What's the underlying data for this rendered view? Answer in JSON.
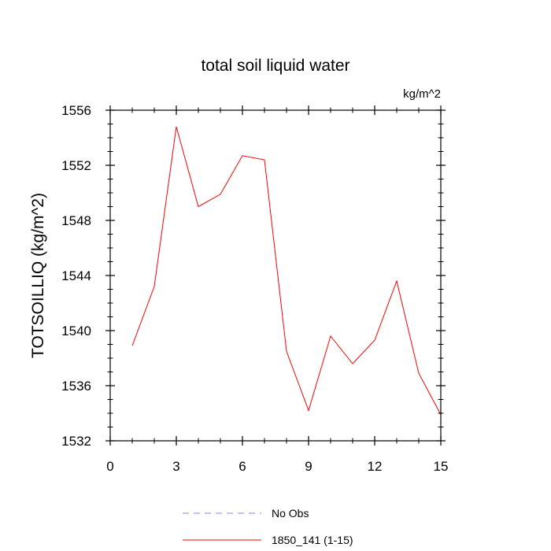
{
  "chart_data": {
    "type": "line",
    "title": "total soil liquid water",
    "units_label": "kg/m^2",
    "ylabel": "TOTSOILLIQ  (kg/m^2)",
    "xlabel": "",
    "xlim": [
      0,
      15
    ],
    "ylim": [
      1532,
      1556
    ],
    "xticks": [
      0,
      3,
      6,
      9,
      12,
      15
    ],
    "yticks": [
      1532,
      1536,
      1540,
      1544,
      1548,
      1552,
      1556
    ],
    "xticks_minor": [
      1,
      2,
      4,
      5,
      7,
      8,
      10,
      11,
      13,
      14
    ],
    "yticks_minor": [
      1533,
      1534,
      1535,
      1537,
      1538,
      1539,
      1541,
      1542,
      1543,
      1545,
      1546,
      1547,
      1549,
      1550,
      1551,
      1553,
      1554,
      1555
    ],
    "grid": false,
    "legend_position": "bottom-center",
    "series": [
      {
        "name": "No Obs",
        "color": "#8080ff",
        "dash": "dashed",
        "x": [],
        "values": []
      },
      {
        "name": "1850_141 (1-15)",
        "color": "#ff0000",
        "dash": "solid",
        "x": [
          1,
          2,
          3,
          4,
          5,
          6,
          7,
          8,
          9,
          10,
          11,
          12,
          13,
          14,
          15
        ],
        "values": [
          1538.9,
          1543.2,
          1554.8,
          1549.0,
          1549.9,
          1552.7,
          1552.4,
          1538.5,
          1534.2,
          1539.6,
          1537.6,
          1539.3,
          1543.6,
          1536.9,
          1533.9
        ]
      }
    ]
  }
}
